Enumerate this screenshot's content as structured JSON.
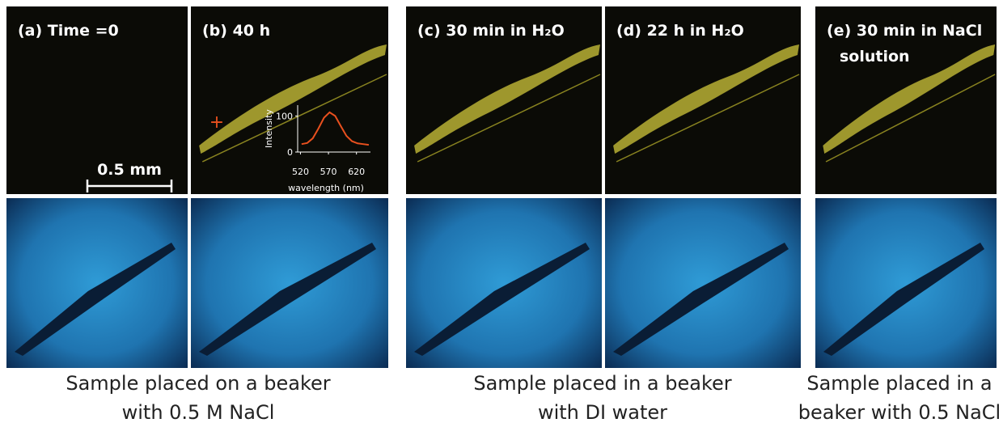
{
  "panels": [
    {
      "label": "(a) Time =0"
    },
    {
      "label": "(b) 40 h"
    },
    {
      "label": "(c) 30 min in H₂O"
    },
    {
      "label": "(d) 22 h in H₂O"
    },
    {
      "label": "(e) 30  min in NaCl",
      "sublabel": "solution"
    }
  ],
  "scale_bar": "0.5 mm",
  "inset": {
    "type": "line",
    "ylabel": "Intensity",
    "xlabel": "wavelength (nm)",
    "x": [
      522,
      532,
      542,
      552,
      562,
      572,
      582,
      592,
      602,
      612,
      622,
      632,
      642
    ],
    "values": [
      22,
      25,
      38,
      65,
      95,
      110,
      100,
      72,
      45,
      30,
      24,
      22,
      20
    ],
    "color": "#e8501e",
    "xlim": [
      515,
      645
    ],
    "ylim": [
      0,
      130
    ],
    "xticks": [
      520,
      570,
      620
    ],
    "yticks": [
      0,
      100
    ]
  },
  "captions": [
    [
      "Sample placed on a beaker",
      "with 0.5 M NaCl"
    ],
    [
      "Sample placed in a beaker",
      "with DI water"
    ],
    [
      "Sample placed in a",
      "beaker with 0.5 NaCl"
    ]
  ]
}
